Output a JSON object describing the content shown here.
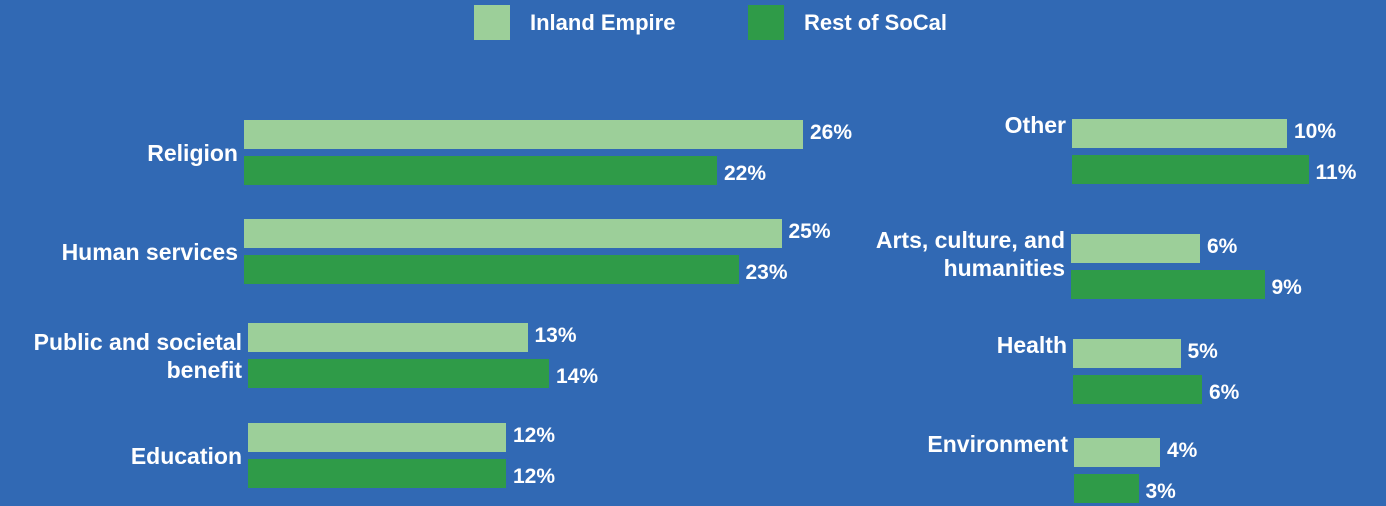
{
  "chart_data": {
    "type": "bar",
    "orientation": "horizontal",
    "categories": [
      "Religion",
      "Human services",
      "Public and societal benefit",
      "Education",
      "Other",
      "Arts, culture, and humanities",
      "Health",
      "Environment"
    ],
    "series": [
      {
        "name": "Inland Empire",
        "color": "#9ccf99",
        "values": [
          26,
          25,
          13,
          12,
          10,
          6,
          5,
          4
        ],
        "value_labels": [
          "26%",
          "25%",
          "13%",
          "12%",
          "10%",
          "6%",
          "5%",
          "4%"
        ]
      },
      {
        "name": "Rest of SoCal",
        "color": "#2f9b48",
        "values": [
          22,
          23,
          14,
          12,
          11,
          9,
          6,
          3
        ],
        "value_labels": [
          "22%",
          "23%",
          "14%",
          "12%",
          "11%",
          "9%",
          "6%",
          "3%"
        ]
      }
    ]
  }
}
